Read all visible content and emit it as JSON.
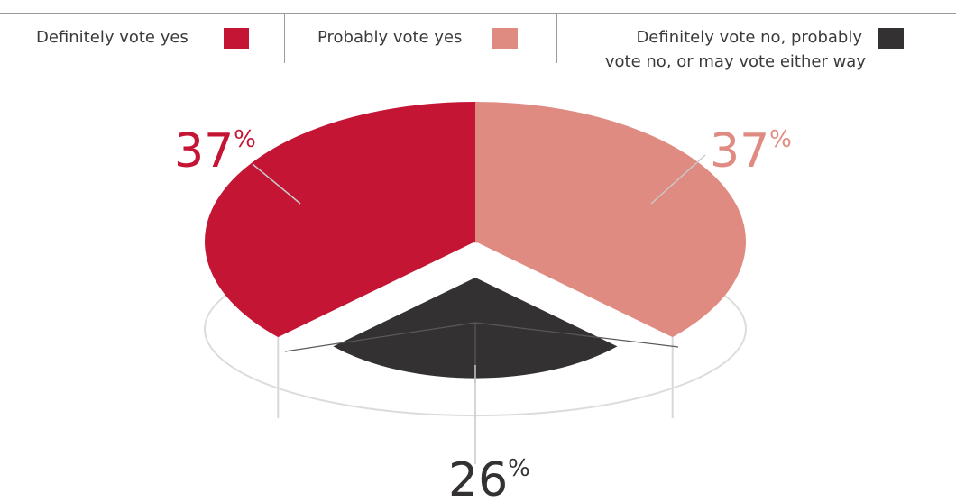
{
  "chart_data": {
    "type": "pie",
    "title": "",
    "legend_placement": "top",
    "series": [
      {
        "name": "Definitely vote yes",
        "value": 37,
        "label": "37",
        "color": "#c41535"
      },
      {
        "name": "Probably vote yes",
        "value": 37,
        "label": "37",
        "color": "#e08b82"
      },
      {
        "name": "Definitely vote no, probably vote no, or may vote either way",
        "value": 26,
        "label": "26",
        "color": "#333132"
      }
    ],
    "legend_lines": {
      "third_line1": "Definitely vote no, probably",
      "third_line2": "vote no, or may vote either way"
    },
    "percent_symbol": "%"
  }
}
